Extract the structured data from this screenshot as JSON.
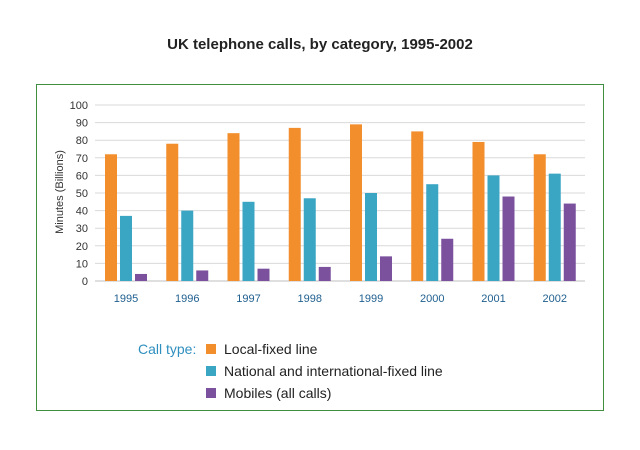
{
  "chart_data": {
    "type": "bar",
    "title": "UK telephone calls, by category, 1995-2002",
    "xlabel": "",
    "ylabel": "Minutes (Billions)",
    "ylim": [
      0,
      100
    ],
    "yticks": [
      0,
      10,
      20,
      30,
      40,
      50,
      60,
      70,
      80,
      90,
      100
    ],
    "grid": true,
    "categories": [
      "1995",
      "1996",
      "1997",
      "1998",
      "1999",
      "2000",
      "2001",
      "2002"
    ],
    "legend_title": "Call type:",
    "legend_position": "bottom",
    "series": [
      {
        "name": "Local-fixed line",
        "color": "#f28e2b",
        "values": [
          72,
          78,
          84,
          87,
          89,
          85,
          79,
          72
        ]
      },
      {
        "name": "National and international-fixed line",
        "color": "#3aa6c4",
        "values": [
          37,
          40,
          45,
          47,
          50,
          55,
          60,
          61
        ]
      },
      {
        "name": "Mobiles (all calls)",
        "color": "#7b519e",
        "values": [
          4,
          6,
          7,
          8,
          14,
          24,
          48,
          44
        ]
      }
    ]
  }
}
